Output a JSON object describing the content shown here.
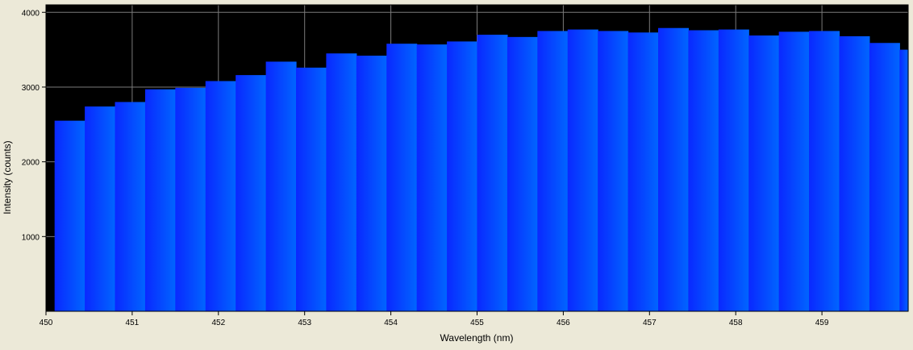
{
  "chart_data": {
    "type": "bar",
    "title": "",
    "xlabel": "Wavelength (nm)",
    "ylabel": "Intensity (counts)",
    "xlim": [
      450,
      460
    ],
    "ylim": [
      0,
      4100
    ],
    "grid": true,
    "x_ticks": [
      "450",
      "451",
      "452",
      "453",
      "454",
      "455",
      "456",
      "457",
      "458",
      "459"
    ],
    "y_ticks": [
      "1000",
      "2000",
      "3000",
      "4000"
    ],
    "background_color": "#000000",
    "fill_color_start": "#0a28ff",
    "fill_color_end": "#0066ff",
    "bin_start": 450.1,
    "bin_width": 0.35,
    "values": [
      2550,
      2740,
      2800,
      2970,
      2990,
      3080,
      3160,
      3340,
      3260,
      3450,
      3420,
      3580,
      3570,
      3610,
      3700,
      3670,
      3750,
      3770,
      3750,
      3730,
      3790,
      3760,
      3770,
      3690,
      3740,
      3750,
      3680,
      3590,
      3500
    ]
  }
}
